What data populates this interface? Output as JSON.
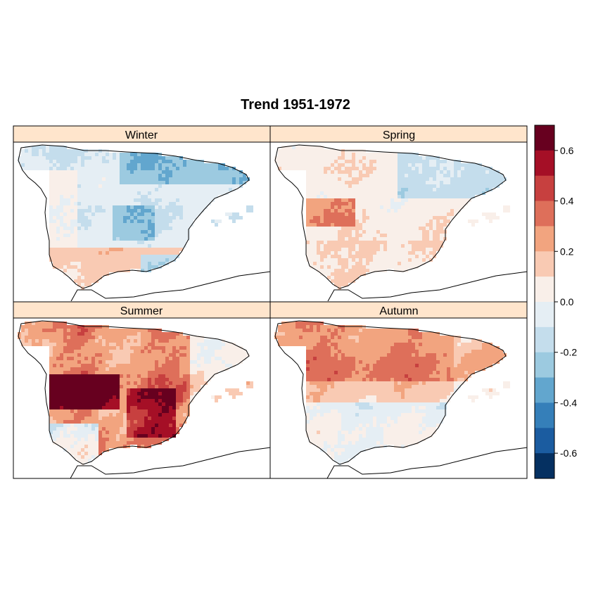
{
  "title": "Trend 1951-1972",
  "panels": [
    {
      "id": "winter",
      "label": "Winter",
      "pattern": "winter"
    },
    {
      "id": "spring",
      "label": "Spring",
      "pattern": "spring"
    },
    {
      "id": "summer",
      "label": "Summer",
      "pattern": "summer"
    },
    {
      "id": "autumn",
      "label": "Autumn",
      "pattern": "autumn"
    }
  ],
  "strip_color": "#FFE5CC",
  "colorkey": {
    "ticks": [
      {
        "value": 0.6,
        "label": "0.6"
      },
      {
        "value": 0.4,
        "label": "0.4"
      },
      {
        "value": 0.2,
        "label": "0.2"
      },
      {
        "value": 0.0,
        "label": "0.0"
      },
      {
        "value": -0.2,
        "label": "-0.2"
      },
      {
        "value": -0.4,
        "label": "-0.4"
      },
      {
        "value": -0.6,
        "label": "-0.6"
      }
    ],
    "range": [
      -0.7,
      0.7
    ],
    "colors_top_to_bottom": [
      "#67001F",
      "#A50F26",
      "#C7403F",
      "#DE6F5A",
      "#F2A47F",
      "#F9CAB3",
      "#F9EFE9",
      "#E5EEF4",
      "#C4DDEC",
      "#9CCAE0",
      "#62A6CE",
      "#357FB9",
      "#1B5CA0",
      "#053061"
    ]
  }
}
